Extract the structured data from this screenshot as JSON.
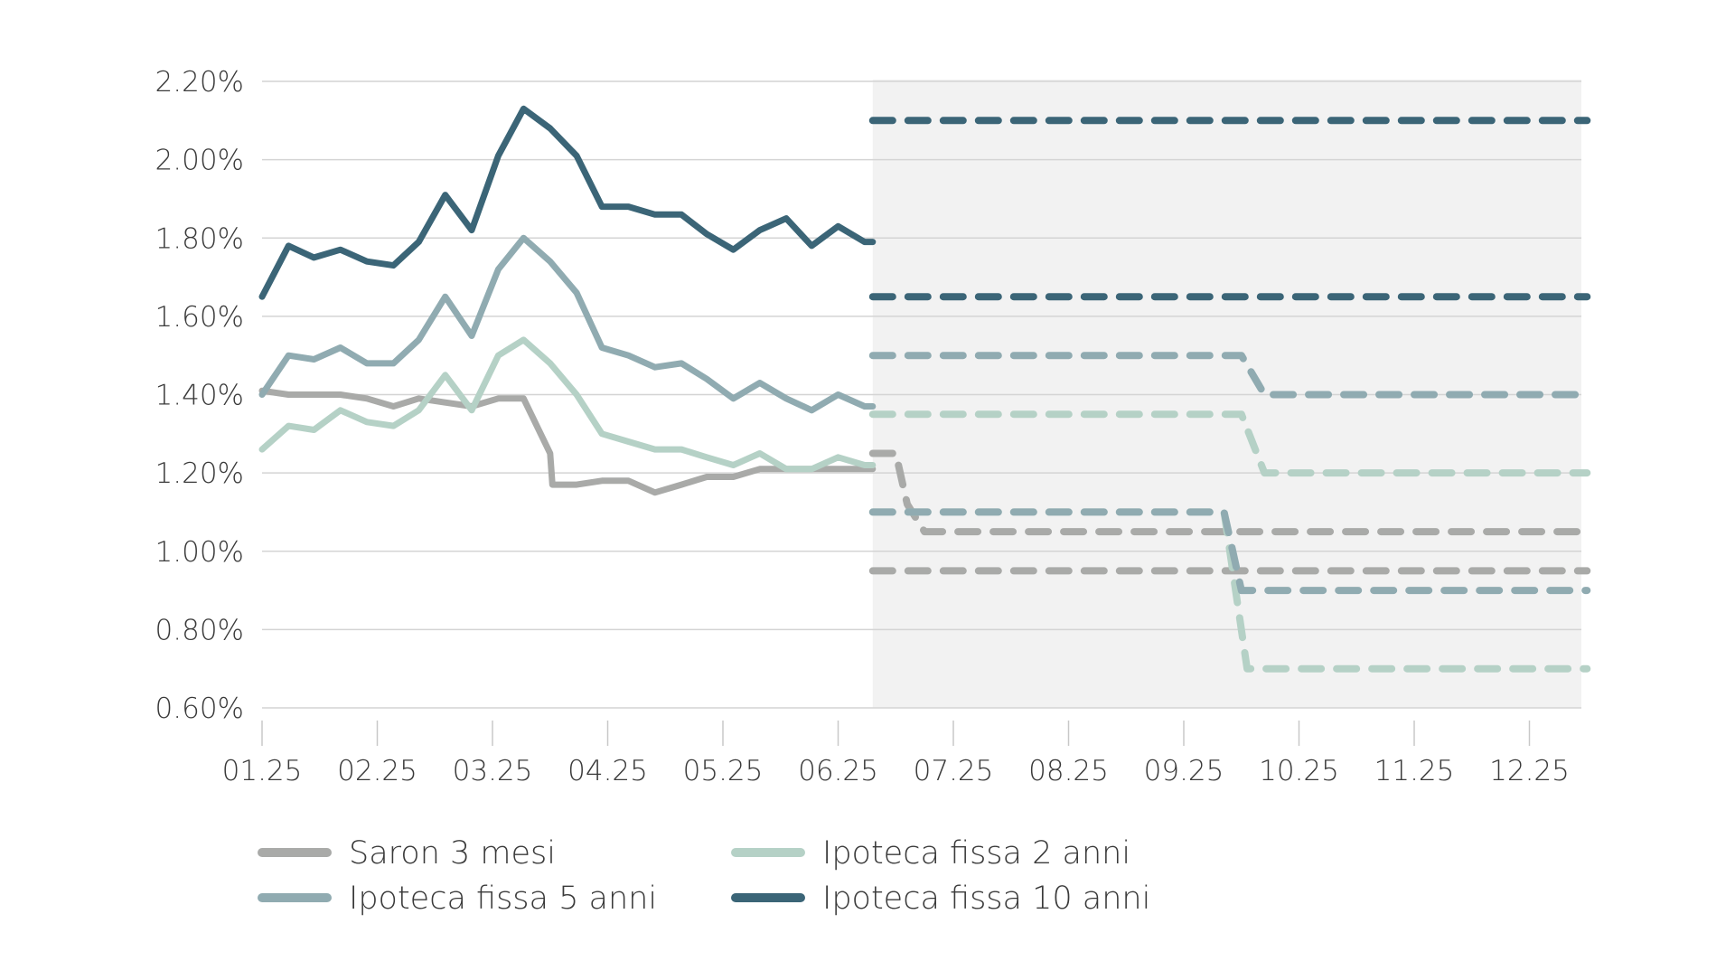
{
  "chart_data": {
    "type": "line",
    "title": "",
    "xlabel": "",
    "ylabel": "",
    "x_ticks": [
      "01.25",
      "02.25",
      "03.25",
      "04.25",
      "05.25",
      "06.25",
      "07.25",
      "08.25",
      "09.25",
      "10.25",
      "11.25",
      "12.25"
    ],
    "y_ticks": [
      "0.60%",
      "0.80%",
      "1.00%",
      "1.20%",
      "1.40%",
      "1.60%",
      "1.80%",
      "2.00%",
      "2.20%"
    ],
    "ylim": [
      0.6,
      2.2
    ],
    "x_unit": "months since 01.25 tick",
    "xlim": [
      0,
      11.5
    ],
    "grid": true,
    "forecast_region_start": 5.3,
    "legend_placement": "bottom-left",
    "series": [
      {
        "name": "Saron 3 mesi",
        "color": "#a9aaa8",
        "x": [
          0,
          0.23,
          0.45,
          0.68,
          0.91,
          1.14,
          1.36,
          1.59,
          1.82,
          2.05,
          2.27,
          2.5,
          2.52,
          2.73,
          2.95,
          3.18,
          3.41,
          3.64,
          3.86,
          4.09,
          4.32,
          4.55,
          4.77,
          5.0,
          5.23,
          5.3
        ],
        "values": [
          1.41,
          1.4,
          1.4,
          1.4,
          1.39,
          1.37,
          1.39,
          1.38,
          1.37,
          1.39,
          1.39,
          1.25,
          1.17,
          1.17,
          1.18,
          1.18,
          1.15,
          1.17,
          1.19,
          1.19,
          1.21,
          1.21,
          1.21,
          1.21,
          1.21,
          1.21
        ],
        "forecast": [
          {
            "x": [
              5.3,
              5.5,
              5.6,
              5.75,
              11.5
            ],
            "values": [
              1.25,
              1.25,
              1.12,
              1.05,
              1.05
            ]
          },
          {
            "x": [
              5.3,
              11.5
            ],
            "values": [
              0.95,
              0.95
            ]
          }
        ]
      },
      {
        "name": "Ipoteca fissa 2 anni",
        "color": "#b5d1c6",
        "x": [
          0,
          0.23,
          0.45,
          0.68,
          0.91,
          1.14,
          1.36,
          1.59,
          1.82,
          2.05,
          2.27,
          2.5,
          2.73,
          2.95,
          3.18,
          3.41,
          3.64,
          3.86,
          4.09,
          4.32,
          4.55,
          4.77,
          5.0,
          5.23,
          5.3
        ],
        "values": [
          1.26,
          1.32,
          1.31,
          1.36,
          1.33,
          1.32,
          1.36,
          1.45,
          1.36,
          1.5,
          1.54,
          1.48,
          1.4,
          1.3,
          1.28,
          1.26,
          1.26,
          1.24,
          1.22,
          1.25,
          1.21,
          1.21,
          1.24,
          1.22,
          1.22
        ],
        "forecast": [
          {
            "x": [
              5.3,
              8.5,
              8.7,
              11.5
            ],
            "values": [
              1.35,
              1.35,
              1.2,
              1.2
            ]
          },
          {
            "x": [
              5.3,
              8.35,
              8.55,
              11.5
            ],
            "values": [
              1.1,
              1.1,
              0.7,
              0.7
            ]
          }
        ]
      },
      {
        "name": "Ipoteca fissa 5 anni",
        "color": "#90abb1",
        "x": [
          0,
          0.23,
          0.45,
          0.68,
          0.91,
          1.14,
          1.36,
          1.59,
          1.82,
          2.05,
          2.27,
          2.5,
          2.73,
          2.95,
          3.18,
          3.41,
          3.64,
          3.86,
          4.09,
          4.32,
          4.55,
          4.77,
          5.0,
          5.23,
          5.3
        ],
        "values": [
          1.4,
          1.5,
          1.49,
          1.52,
          1.48,
          1.48,
          1.54,
          1.65,
          1.55,
          1.72,
          1.8,
          1.74,
          1.66,
          1.52,
          1.5,
          1.47,
          1.48,
          1.44,
          1.39,
          1.43,
          1.39,
          1.36,
          1.4,
          1.37,
          1.37
        ],
        "forecast": [
          {
            "x": [
              5.3,
              8.5,
              8.7,
              11.5
            ],
            "values": [
              1.5,
              1.5,
              1.4,
              1.4
            ]
          },
          {
            "x": [
              5.3,
              8.35,
              8.5,
              11.5
            ],
            "values": [
              1.1,
              1.1,
              0.9,
              0.9
            ]
          }
        ]
      },
      {
        "name": "Ipoteca fissa 10 anni",
        "color": "#3b6577",
        "x": [
          0,
          0.23,
          0.45,
          0.68,
          0.91,
          1.14,
          1.36,
          1.59,
          1.82,
          2.05,
          2.27,
          2.5,
          2.73,
          2.95,
          3.18,
          3.41,
          3.64,
          3.86,
          4.09,
          4.32,
          4.55,
          4.77,
          5.0,
          5.23,
          5.3
        ],
        "values": [
          1.65,
          1.78,
          1.75,
          1.77,
          1.74,
          1.73,
          1.79,
          1.91,
          1.82,
          2.01,
          2.13,
          2.08,
          2.01,
          1.88,
          1.88,
          1.86,
          1.86,
          1.81,
          1.77,
          1.82,
          1.85,
          1.78,
          1.83,
          1.79,
          1.79
        ],
        "forecast": [
          {
            "x": [
              5.3,
              11.5
            ],
            "values": [
              2.1,
              2.1
            ]
          },
          {
            "x": [
              5.3,
              11.5
            ],
            "values": [
              1.65,
              1.65
            ]
          }
        ]
      }
    ]
  },
  "legend": [
    {
      "label": "Saron 3 mesi",
      "color": "#a9aaa8",
      "col": 0,
      "row": 0
    },
    {
      "label": "Ipoteca fissa 2 anni",
      "color": "#b5d1c6",
      "col": 1,
      "row": 0
    },
    {
      "label": "Ipoteca fissa 5 anni",
      "color": "#90abb1",
      "col": 0,
      "row": 1
    },
    {
      "label": "Ipoteca fissa 10 anni",
      "color": "#3b6577",
      "col": 1,
      "row": 1
    }
  ],
  "colors": {
    "forecast_background": "#f2f2f2",
    "grid": "#d4d4d4",
    "axis_tick": "#c8c8c8",
    "text": "#3a3a3a"
  }
}
